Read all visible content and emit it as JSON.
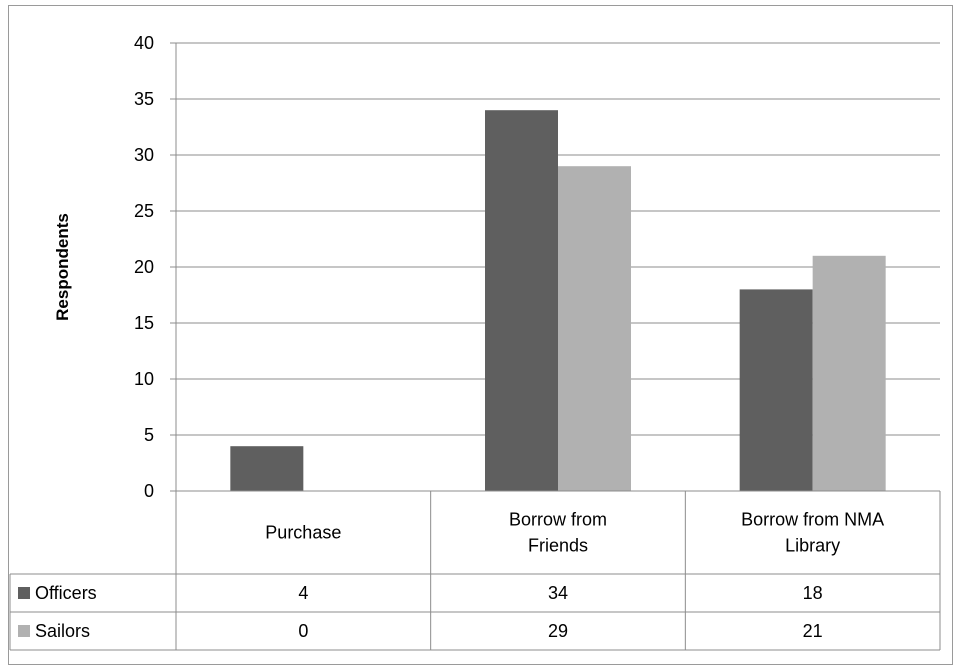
{
  "chart_data": {
    "type": "bar",
    "title": "",
    "xlabel": "",
    "ylabel": "Respondents",
    "ylim": [
      0,
      40
    ],
    "yticks": [
      0,
      5,
      10,
      15,
      20,
      25,
      30,
      35,
      40
    ],
    "grid": true,
    "legend": "data-table",
    "categories": [
      [
        "Purchase"
      ],
      [
        "Borrow from",
        "Friends"
      ],
      [
        "Borrow from NMA",
        "Library"
      ]
    ],
    "series": [
      {
        "name": "Officers",
        "color": "#5f5f5f",
        "values": [
          4,
          34,
          18
        ]
      },
      {
        "name": "Sailors",
        "color": "#b1b1b1",
        "values": [
          0,
          29,
          21
        ]
      }
    ]
  }
}
